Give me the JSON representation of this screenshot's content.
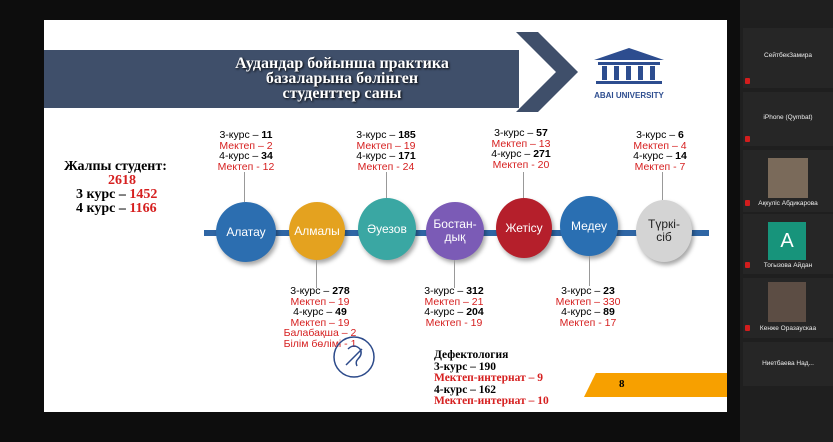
{
  "slide": {
    "title_lines": [
      "Аудандар бойынша практика",
      "базаларына бөлінген",
      "студенттер саны"
    ],
    "logo_text": "ABAI UNIVERSITY",
    "summary": {
      "label": "Жалпы студент:",
      "total": "2618",
      "c3_label": "3 курс –",
      "c3_value": "1452",
      "c4_label": "4 курс –",
      "c4_value": "1166"
    },
    "districts": [
      {
        "name": "Алатау",
        "color": "#2c6eb0"
      },
      {
        "name": "Алмалы",
        "color": "#e4a21f"
      },
      {
        "name": "Әуезов",
        "color": "#3aa7a3"
      },
      {
        "name": "Бостан-дық",
        "color": "#7b5bb6"
      },
      {
        "name": "Жетісу",
        "color": "#b51f2b"
      },
      {
        "name": "Медеу",
        "color": "#2a6fb2"
      },
      {
        "name": "Түркі-сіб",
        "color": "#c9c9c9"
      }
    ],
    "top_blocks": [
      {
        "l1": "3-курс – ",
        "v1": "11",
        "l2": "Мектеп – 2",
        "l3": "4-курс – ",
        "v3": "34",
        "l4": "Мектеп - 12"
      },
      {
        "l1": "3-курс – ",
        "v1": "185",
        "l2": "Мектеп – 19",
        "l3": "4-курс – ",
        "v3": "171",
        "l4": "Мектеп - 24"
      },
      {
        "l1": "3-курс – ",
        "v1": "57",
        "l2": "Мектеп – 13",
        "l3": "4-курс – ",
        "v3": "271",
        "l4": "Мектеп - 20"
      },
      {
        "l1": "3-курс – ",
        "v1": "6",
        "l2": "Мектеп – 4",
        "l3": "4-курс – ",
        "v3": "14",
        "l4": "Мектеп - 7"
      }
    ],
    "bottom_blocks": [
      {
        "l1": "3-курс – ",
        "v1": "278",
        "l2": "Мектеп – 19",
        "l3": "4-курс – ",
        "v3": "49",
        "l4": "Мектеп – 19",
        "l5": "Балабақша – 2",
        "l6": "Білім  бөлімі - 1"
      },
      {
        "l1": "3-курс – ",
        "v1": "312",
        "l2": "Мектеп – 21",
        "l3": "4-курс – ",
        "v3": "204",
        "l4": "Мектеп - 19"
      },
      {
        "l1": "3-курс – ",
        "v1": "23",
        "l2": "Мектеп – 330",
        "l3": "4-курс – ",
        "v3": "89",
        "l4": "Мектеп - 17"
      }
    ],
    "defect": {
      "title": "Дефектология",
      "l1": "3-курс – 190",
      "l2": "Мектеп-интернат – 9",
      "l3": "4-курс – 162",
      "l4": "Мектеп-интернат – 10"
    },
    "page_number": "8"
  },
  "participants": [
    {
      "name": "СейтбекЗамира"
    },
    {
      "name": "iPhone (Qymbat)"
    },
    {
      "name": "Ақкуліс Абдикарова"
    },
    {
      "name": "Тогызова Айдан",
      "initial": "A"
    },
    {
      "name": "Кенже Оразаускаа"
    },
    {
      "name": "Ниетбаева  Над..."
    }
  ]
}
